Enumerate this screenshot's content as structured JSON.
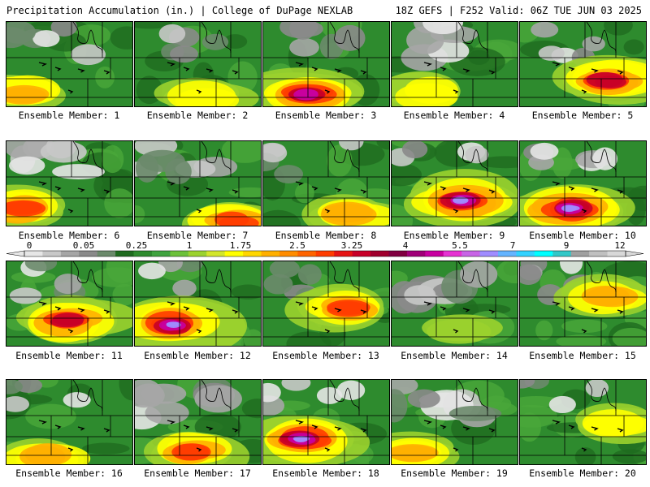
{
  "header": {
    "title": "Precipitation Accumulation (in.) | College of DuPage NEXLAB",
    "run_info": "18Z GEFS | F252 Valid: 06Z TUE JUN 03 2025"
  },
  "colorbar": {
    "tick_labels": [
      "0",
      "0.05",
      "0.25",
      "1",
      "1.75",
      "2.5",
      "3.25",
      "4",
      "5.5",
      "7",
      "9",
      "12"
    ],
    "colors": [
      "#e6e6e6",
      "#c8c8c8",
      "#a6a6a6",
      "#8a8a8a",
      "#6b8a6b",
      "#1f6b1f",
      "#2e8b2e",
      "#3fa33f",
      "#6cc13a",
      "#9bd22e",
      "#d2e62a",
      "#ffff00",
      "#ffd700",
      "#ffb000",
      "#ff8c00",
      "#ff6400",
      "#ff3c00",
      "#e61414",
      "#c80028",
      "#a0002d",
      "#800040",
      "#a00078",
      "#c800a0",
      "#e632d2",
      "#c864e6",
      "#a08cff",
      "#64b4ff",
      "#32d2ff",
      "#00ffff",
      "#32c8c8",
      "#a0a0a0",
      "#c0c0c0",
      "#d8d8d8"
    ]
  },
  "panels": [
    {
      "label": "Ensemble Member: 1",
      "intensity": 0.45,
      "blob": [
        0.1,
        0.85
      ],
      "gray_nw": 0.5
    },
    {
      "label": "Ensemble Member: 2",
      "intensity": 0.35,
      "blob": [
        0.55,
        0.9
      ],
      "gray_nw": 0.3
    },
    {
      "label": "Ensemble Member: 3",
      "intensity": 0.85,
      "blob": [
        0.35,
        0.85
      ],
      "gray_nw": 0.6
    },
    {
      "label": "Ensemble Member: 4",
      "intensity": 0.3,
      "blob": [
        0.3,
        0.85
      ],
      "gray_nw": 0.8
    },
    {
      "label": "Ensemble Member: 5",
      "intensity": 0.7,
      "blob": [
        0.7,
        0.7
      ],
      "gray_nw": 0.3
    },
    {
      "label": "Ensemble Member: 6",
      "intensity": 0.55,
      "blob": [
        0.1,
        0.8
      ],
      "gray_nw": 1.0
    },
    {
      "label": "Ensemble Member: 7",
      "intensity": 0.5,
      "blob": [
        0.8,
        0.95
      ],
      "gray_nw": 0.8
    },
    {
      "label": "Ensemble Member: 8",
      "intensity": 0.4,
      "blob": [
        0.7,
        0.85
      ],
      "gray_nw": 0.3
    },
    {
      "label": "Ensemble Member: 9",
      "intensity": 0.95,
      "blob": [
        0.55,
        0.7
      ],
      "gray_nw": 0.2
    },
    {
      "label": "Ensemble Member: 10",
      "intensity": 1.0,
      "blob": [
        0.4,
        0.8
      ],
      "gray_nw": 0.5
    },
    {
      "label": "Ensemble Member: 11",
      "intensity": 0.7,
      "blob": [
        0.5,
        0.7
      ],
      "gray_nw": 0.3
    },
    {
      "label": "Ensemble Member: 12",
      "intensity": 0.95,
      "blob": [
        0.3,
        0.75
      ],
      "gray_nw": 0.2
    },
    {
      "label": "Ensemble Member: 13",
      "intensity": 0.55,
      "blob": [
        0.65,
        0.55
      ],
      "gray_nw": 0.4
    },
    {
      "label": "Ensemble Member: 14",
      "intensity": 0.15,
      "blob": [
        0.5,
        0.8
      ],
      "gray_nw": 1.0
    },
    {
      "label": "Ensemble Member: 15",
      "intensity": 0.45,
      "blob": [
        0.7,
        0.4
      ],
      "gray_nw": 0.5
    },
    {
      "label": "Ensemble Member: 16",
      "intensity": 0.45,
      "blob": [
        0.3,
        0.9
      ],
      "gray_nw": 0.2
    },
    {
      "label": "Ensemble Member: 17",
      "intensity": 0.5,
      "blob": [
        0.45,
        0.85
      ],
      "gray_nw": 0.9
    },
    {
      "label": "Ensemble Member: 18",
      "intensity": 0.95,
      "blob": [
        0.3,
        0.7
      ],
      "gray_nw": 0.3
    },
    {
      "label": "Ensemble Member: 19",
      "intensity": 0.4,
      "blob": [
        0.2,
        0.85
      ],
      "gray_nw": 1.0
    },
    {
      "label": "Ensemble Member: 20",
      "intensity": 0.3,
      "blob": [
        0.8,
        0.5
      ],
      "gray_nw": 0.2
    }
  ]
}
